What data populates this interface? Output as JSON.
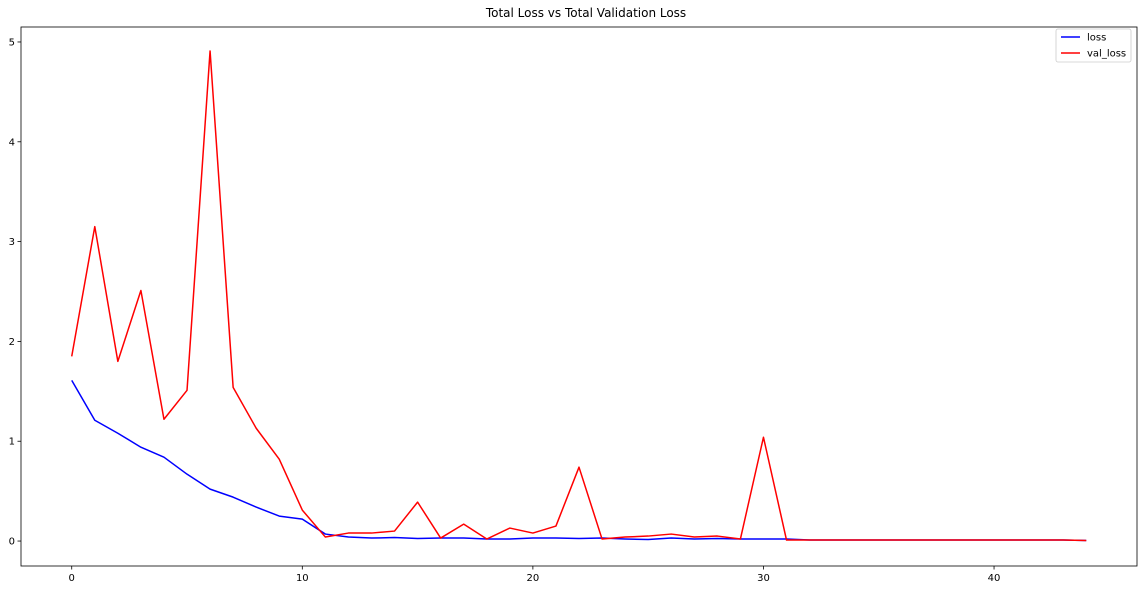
{
  "chart_data": {
    "type": "line",
    "title": "Total Loss vs Total Validation Loss",
    "xlabel": "",
    "ylabel": "",
    "xlim": [
      -2.2,
      46.2
    ],
    "ylim": [
      -0.25,
      5.15
    ],
    "xticks": [
      0,
      10,
      20,
      30,
      40
    ],
    "yticks": [
      0,
      1,
      2,
      3,
      4,
      5
    ],
    "grid": false,
    "legend_position": "top-right",
    "x": [
      0,
      1,
      2,
      3,
      4,
      5,
      6,
      7,
      8,
      9,
      10,
      11,
      12,
      13,
      14,
      15,
      16,
      17,
      18,
      19,
      20,
      21,
      22,
      23,
      24,
      25,
      26,
      27,
      28,
      29,
      30,
      31,
      32,
      33,
      34,
      35,
      36,
      37,
      38,
      39,
      40,
      41,
      42,
      43,
      44
    ],
    "series": [
      {
        "name": "loss",
        "color": "#0000ff",
        "values": [
          1.61,
          1.21,
          1.08,
          0.94,
          0.84,
          0.67,
          0.52,
          0.44,
          0.34,
          0.25,
          0.22,
          0.07,
          0.04,
          0.03,
          0.035,
          0.025,
          0.03,
          0.03,
          0.02,
          0.02,
          0.03,
          0.03,
          0.025,
          0.03,
          0.02,
          0.015,
          0.03,
          0.02,
          0.025,
          0.02,
          0.02,
          0.02,
          0.01,
          0.01,
          0.01,
          0.01,
          0.01,
          0.01,
          0.01,
          0.01,
          0.01,
          0.01,
          0.01,
          0.01,
          0.005
        ]
      },
      {
        "name": "val_loss",
        "color": "#ff0000",
        "values": [
          1.85,
          3.15,
          1.8,
          2.51,
          1.22,
          1.51,
          4.91,
          1.54,
          1.13,
          0.82,
          0.31,
          0.04,
          0.08,
          0.08,
          0.1,
          0.39,
          0.03,
          0.17,
          0.02,
          0.13,
          0.08,
          0.15,
          0.74,
          0.02,
          0.04,
          0.05,
          0.07,
          0.04,
          0.05,
          0.02,
          1.04,
          0.01,
          0.01,
          0.01,
          0.01,
          0.01,
          0.01,
          0.01,
          0.01,
          0.01,
          0.01,
          0.01,
          0.01,
          0.01,
          0.005
        ]
      }
    ]
  }
}
